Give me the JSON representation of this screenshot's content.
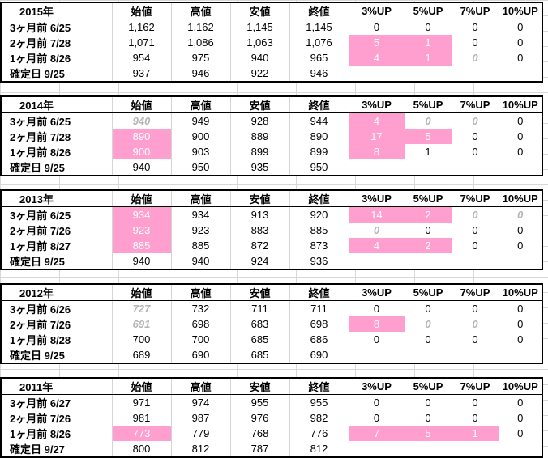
{
  "headers": [
    "始値",
    "高値",
    "安値",
    "終値",
    "3%UP",
    "5%UP",
    "7%UP",
    "10%UP"
  ],
  "blocks": [
    {
      "year": "2015年",
      "rows": [
        {
          "label": "3ヶ月前  6/25",
          "cells": [
            {
              "v": "1,162",
              "s": ""
            },
            {
              "v": "1,162",
              "s": ""
            },
            {
              "v": "1,145",
              "s": ""
            },
            {
              "v": "1,145",
              "s": ""
            },
            {
              "v": "0",
              "s": ""
            },
            {
              "v": "0",
              "s": ""
            },
            {
              "v": "0",
              "s": ""
            },
            {
              "v": "0",
              "s": ""
            }
          ]
        },
        {
          "label": "2ヶ月前  7/28",
          "cells": [
            {
              "v": "1,071",
              "s": ""
            },
            {
              "v": "1,086",
              "s": ""
            },
            {
              "v": "1,063",
              "s": ""
            },
            {
              "v": "1,076",
              "s": ""
            },
            {
              "v": "5",
              "s": "pink"
            },
            {
              "v": "1",
              "s": "pink"
            },
            {
              "v": "0",
              "s": ""
            },
            {
              "v": "0",
              "s": ""
            }
          ]
        },
        {
          "label": "1ヶ月前  8/26",
          "cells": [
            {
              "v": "954",
              "s": ""
            },
            {
              "v": "975",
              "s": ""
            },
            {
              "v": "940",
              "s": ""
            },
            {
              "v": "965",
              "s": ""
            },
            {
              "v": "4",
              "s": "pink"
            },
            {
              "v": "1",
              "s": "pink"
            },
            {
              "v": "0",
              "s": "gray"
            },
            {
              "v": "0",
              "s": ""
            }
          ]
        },
        {
          "label": "確定日   9/25",
          "cells": [
            {
              "v": "937",
              "s": ""
            },
            {
              "v": "946",
              "s": ""
            },
            {
              "v": "922",
              "s": ""
            },
            {
              "v": "946",
              "s": ""
            },
            {
              "v": "",
              "s": ""
            },
            {
              "v": "",
              "s": ""
            },
            {
              "v": "",
              "s": ""
            },
            {
              "v": "",
              "s": ""
            }
          ]
        }
      ]
    },
    {
      "year": "2014年",
      "rows": [
        {
          "label": "3ヶ月前  6/25",
          "cells": [
            {
              "v": "940",
              "s": "gray"
            },
            {
              "v": "949",
              "s": ""
            },
            {
              "v": "928",
              "s": ""
            },
            {
              "v": "944",
              "s": ""
            },
            {
              "v": "4",
              "s": "pink"
            },
            {
              "v": "0",
              "s": "gray"
            },
            {
              "v": "0",
              "s": "gray"
            },
            {
              "v": "0",
              "s": ""
            }
          ]
        },
        {
          "label": "2ヶ月前  7/28",
          "cells": [
            {
              "v": "890",
              "s": "pink"
            },
            {
              "v": "900",
              "s": ""
            },
            {
              "v": "889",
              "s": ""
            },
            {
              "v": "890",
              "s": ""
            },
            {
              "v": "17",
              "s": "pink"
            },
            {
              "v": "5",
              "s": "pink"
            },
            {
              "v": "0",
              "s": ""
            },
            {
              "v": "0",
              "s": ""
            }
          ]
        },
        {
          "label": "1ヶ月前  8/26",
          "cells": [
            {
              "v": "900",
              "s": "pink"
            },
            {
              "v": "903",
              "s": ""
            },
            {
              "v": "899",
              "s": ""
            },
            {
              "v": "899",
              "s": ""
            },
            {
              "v": "8",
              "s": "pink"
            },
            {
              "v": "1",
              "s": ""
            },
            {
              "v": "0",
              "s": ""
            },
            {
              "v": "0",
              "s": ""
            }
          ]
        },
        {
          "label": "確定日   9/25",
          "cells": [
            {
              "v": "940",
              "s": ""
            },
            {
              "v": "950",
              "s": ""
            },
            {
              "v": "935",
              "s": ""
            },
            {
              "v": "950",
              "s": ""
            },
            {
              "v": "",
              "s": ""
            },
            {
              "v": "",
              "s": ""
            },
            {
              "v": "",
              "s": ""
            },
            {
              "v": "",
              "s": ""
            }
          ]
        }
      ]
    },
    {
      "year": "2013年",
      "rows": [
        {
          "label": "3ヶ月前  6/25",
          "cells": [
            {
              "v": "934",
              "s": "pink"
            },
            {
              "v": "934",
              "s": ""
            },
            {
              "v": "913",
              "s": ""
            },
            {
              "v": "920",
              "s": ""
            },
            {
              "v": "14",
              "s": "pink"
            },
            {
              "v": "2",
              "s": "pink"
            },
            {
              "v": "0",
              "s": "gray"
            },
            {
              "v": "0",
              "s": "gray"
            }
          ]
        },
        {
          "label": "2ヶ月前  7/26",
          "cells": [
            {
              "v": "923",
              "s": "pink"
            },
            {
              "v": "923",
              "s": ""
            },
            {
              "v": "883",
              "s": ""
            },
            {
              "v": "885",
              "s": ""
            },
            {
              "v": "0",
              "s": "gray"
            },
            {
              "v": "0",
              "s": ""
            },
            {
              "v": "0",
              "s": ""
            },
            {
              "v": "0",
              "s": ""
            }
          ]
        },
        {
          "label": "1ヶ月前  8/27",
          "cells": [
            {
              "v": "885",
              "s": "pink"
            },
            {
              "v": "885",
              "s": ""
            },
            {
              "v": "872",
              "s": ""
            },
            {
              "v": "873",
              "s": ""
            },
            {
              "v": "4",
              "s": "pink"
            },
            {
              "v": "2",
              "s": "pink"
            },
            {
              "v": "0",
              "s": ""
            },
            {
              "v": "0",
              "s": ""
            }
          ]
        },
        {
          "label": "確定日   9/25",
          "cells": [
            {
              "v": "940",
              "s": ""
            },
            {
              "v": "940",
              "s": ""
            },
            {
              "v": "924",
              "s": ""
            },
            {
              "v": "936",
              "s": ""
            },
            {
              "v": "",
              "s": ""
            },
            {
              "v": "",
              "s": ""
            },
            {
              "v": "",
              "s": ""
            },
            {
              "v": "",
              "s": ""
            }
          ]
        }
      ]
    },
    {
      "year": "2012年",
      "rows": [
        {
          "label": "3ヶ月前  6/26",
          "cells": [
            {
              "v": "727",
              "s": "gray"
            },
            {
              "v": "732",
              "s": ""
            },
            {
              "v": "711",
              "s": ""
            },
            {
              "v": "711",
              "s": ""
            },
            {
              "v": "0",
              "s": ""
            },
            {
              "v": "0",
              "s": ""
            },
            {
              "v": "0",
              "s": ""
            },
            {
              "v": "0",
              "s": ""
            }
          ]
        },
        {
          "label": "2ヶ月前  7/26",
          "cells": [
            {
              "v": "691",
              "s": "gray"
            },
            {
              "v": "698",
              "s": ""
            },
            {
              "v": "683",
              "s": ""
            },
            {
              "v": "698",
              "s": ""
            },
            {
              "v": "8",
              "s": "pink"
            },
            {
              "v": "0",
              "s": "gray"
            },
            {
              "v": "0",
              "s": "gray"
            },
            {
              "v": "0",
              "s": ""
            }
          ]
        },
        {
          "label": "1ヶ月前  8/28",
          "cells": [
            {
              "v": "700",
              "s": ""
            },
            {
              "v": "700",
              "s": ""
            },
            {
              "v": "685",
              "s": ""
            },
            {
              "v": "686",
              "s": ""
            },
            {
              "v": "0",
              "s": ""
            },
            {
              "v": "0",
              "s": ""
            },
            {
              "v": "0",
              "s": ""
            },
            {
              "v": "0",
              "s": ""
            }
          ]
        },
        {
          "label": "確定日   9/25",
          "cells": [
            {
              "v": "689",
              "s": ""
            },
            {
              "v": "690",
              "s": ""
            },
            {
              "v": "685",
              "s": ""
            },
            {
              "v": "690",
              "s": ""
            },
            {
              "v": "",
              "s": ""
            },
            {
              "v": "",
              "s": ""
            },
            {
              "v": "",
              "s": ""
            },
            {
              "v": "",
              "s": ""
            }
          ]
        }
      ]
    },
    {
      "year": "2011年",
      "rows": [
        {
          "label": "3ヶ月前  6/27",
          "cells": [
            {
              "v": "971",
              "s": ""
            },
            {
              "v": "974",
              "s": ""
            },
            {
              "v": "955",
              "s": ""
            },
            {
              "v": "955",
              "s": ""
            },
            {
              "v": "0",
              "s": ""
            },
            {
              "v": "0",
              "s": ""
            },
            {
              "v": "0",
              "s": ""
            },
            {
              "v": "0",
              "s": ""
            }
          ]
        },
        {
          "label": "2ヶ月前  7/26",
          "cells": [
            {
              "v": "981",
              "s": ""
            },
            {
              "v": "987",
              "s": ""
            },
            {
              "v": "976",
              "s": ""
            },
            {
              "v": "982",
              "s": ""
            },
            {
              "v": "0",
              "s": ""
            },
            {
              "v": "0",
              "s": ""
            },
            {
              "v": "0",
              "s": ""
            },
            {
              "v": "0",
              "s": ""
            }
          ]
        },
        {
          "label": "1ヶ月前  8/26",
          "cells": [
            {
              "v": "773",
              "s": "pink"
            },
            {
              "v": "779",
              "s": ""
            },
            {
              "v": "768",
              "s": ""
            },
            {
              "v": "776",
              "s": ""
            },
            {
              "v": "7",
              "s": "pink"
            },
            {
              "v": "5",
              "s": "pink"
            },
            {
              "v": "1",
              "s": "pink"
            },
            {
              "v": "0",
              "s": ""
            }
          ]
        },
        {
          "label": "確定日   9/27",
          "cells": [
            {
              "v": "800",
              "s": ""
            },
            {
              "v": "812",
              "s": ""
            },
            {
              "v": "787",
              "s": ""
            },
            {
              "v": "812",
              "s": ""
            },
            {
              "v": "",
              "s": ""
            },
            {
              "v": "",
              "s": ""
            },
            {
              "v": "",
              "s": ""
            },
            {
              "v": "",
              "s": ""
            }
          ]
        }
      ]
    }
  ]
}
